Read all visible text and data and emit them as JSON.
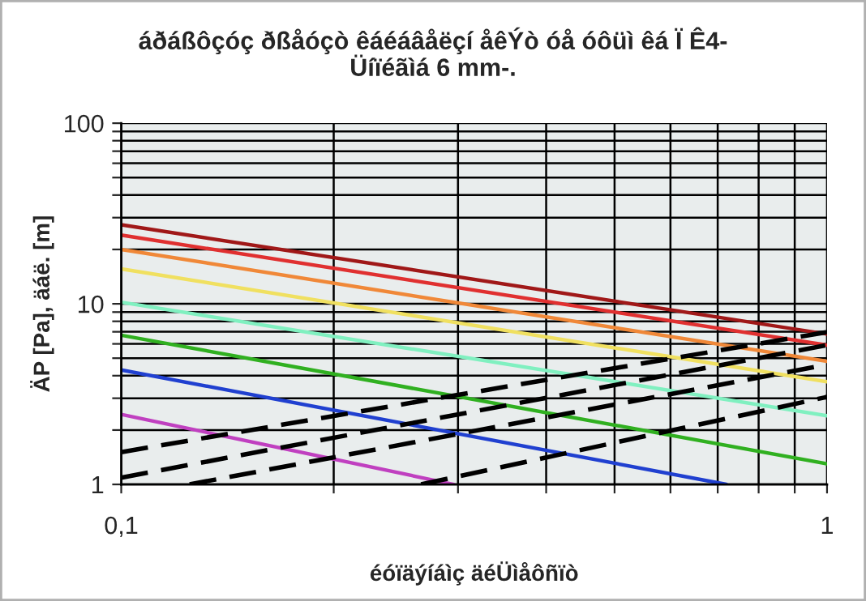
{
  "chart_data": {
    "type": "line",
    "title": "áðáßôçóç ðßåóçò êáéáâåëçí åêÝò óå óôüì êá Ï Ê4-\nÜíïéãìá 6 mm-.",
    "xlabel": "éóïäýíáìç äéÜìåôñïò",
    "ylabel": "ÄP [Pa], äáë. [m]",
    "log": "xy",
    "grid": true,
    "legend": false,
    "xlim": [
      0.1,
      1
    ],
    "ylim": [
      1,
      100
    ],
    "xticks": [
      {
        "value": 0.1,
        "label": "0,1"
      },
      {
        "value": 0.2,
        "label": null
      },
      {
        "value": 0.3,
        "label": null
      },
      {
        "value": 0.4,
        "label": null
      },
      {
        "value": 0.5,
        "label": null
      },
      {
        "value": 0.6,
        "label": null
      },
      {
        "value": 0.7,
        "label": null
      },
      {
        "value": 0.8,
        "label": null
      },
      {
        "value": 0.9,
        "label": null
      },
      1
    ],
    "yticks": [
      1,
      {
        "value": 2,
        "label": null
      },
      {
        "value": 3,
        "label": null
      },
      {
        "value": 4,
        "label": null
      },
      {
        "value": 5,
        "label": null
      },
      {
        "value": 6,
        "label": null
      },
      {
        "value": 7,
        "label": null
      },
      {
        "value": 8,
        "label": null
      },
      {
        "value": 9,
        "label": null
      },
      10,
      {
        "value": 20,
        "label": null
      },
      {
        "value": 30,
        "label": null
      },
      {
        "value": 40,
        "label": null
      },
      {
        "value": 50,
        "label": null
      },
      {
        "value": 60,
        "label": null
      },
      {
        "value": 70,
        "label": null
      },
      {
        "value": 80,
        "label": null
      },
      {
        "value": 90,
        "label": null
      },
      100
    ],
    "series": [
      {
        "color": "#a01818",
        "x": [
          0.1,
          1
        ],
        "values": [
          27.4,
          6.8
        ]
      },
      {
        "color": "#e03030",
        "x": [
          0.1,
          1
        ],
        "values": [
          24,
          5.9
        ]
      },
      {
        "color": "#f08838",
        "x": [
          0.1,
          1
        ],
        "values": [
          20,
          4.8
        ]
      },
      {
        "color": "#f0e060",
        "x": [
          0.1,
          1
        ],
        "values": [
          15.6,
          3.7
        ]
      },
      {
        "color": "#80f0c0",
        "x": [
          0.1,
          1
        ],
        "values": [
          10.2,
          2.4
        ]
      },
      {
        "color": "#30b020",
        "x": [
          0.1,
          1
        ],
        "values": [
          6.7,
          1.3
        ]
      },
      {
        "color": "#2040d0",
        "x": [
          0.1,
          0.72
        ],
        "values": [
          4.3,
          1
        ]
      },
      {
        "color": "#c040c0",
        "x": [
          0.1,
          0.296
        ],
        "values": [
          2.44,
          1
        ]
      },
      {
        "color": "#000000",
        "line_style": "dashed",
        "x": [
          0.1,
          1
        ],
        "values": [
          1.51,
          6.97
        ]
      },
      {
        "color": "#000000",
        "line_style": "dashed",
        "x": [
          0.1,
          1
        ],
        "values": [
          1.09,
          5.9
        ]
      },
      {
        "color": "#000000",
        "line_style": "dashed",
        "x": [
          0.125,
          1
        ],
        "values": [
          1,
          4.6
        ]
      },
      {
        "color": "#000000",
        "line_style": "dashed",
        "x": [
          0.266,
          1
        ],
        "values": [
          1,
          3.05
        ]
      }
    ]
  }
}
